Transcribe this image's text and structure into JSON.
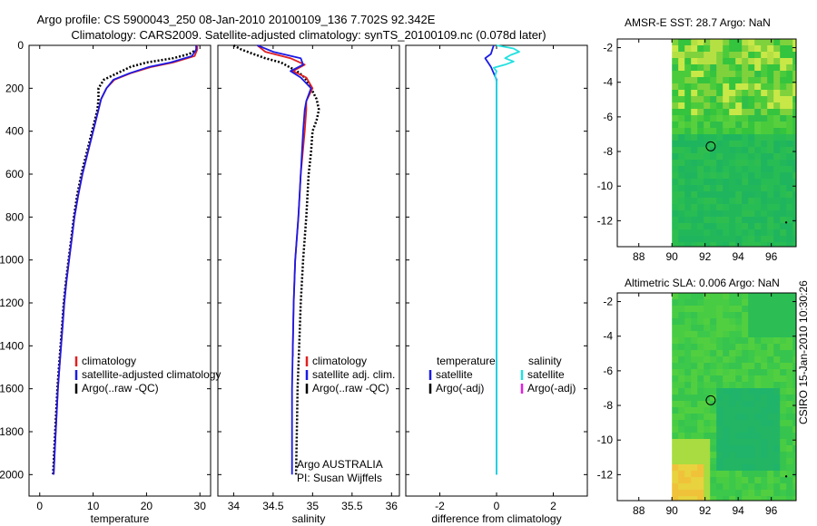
{
  "header": {
    "title_line1": "Argo profile: CS 5900043_250 08-Jan-2010 20100109_136 7.702S 92.342E",
    "title_line2": "Climatology: CARS2009. Satellite-adjusted climatology: synTS_20100109.nc (0.078d later)"
  },
  "credit": "CSIRO 15-Jan-2010 10:30:26",
  "colors": {
    "climatology": "#e02020",
    "satellite": "#1a1ae6",
    "argo": "#000000",
    "sal_satellite": "#22e0e0",
    "sal_argo": "#e020e0"
  },
  "chart_data": [
    {
      "type": "line",
      "name": "temperature-profile",
      "xlabel": "temperature",
      "ylabel": "",
      "xlim": [
        -2,
        32
      ],
      "ylim": [
        2100,
        0
      ],
      "xticks": [
        0,
        10,
        20,
        30
      ],
      "yticks": [
        0,
        200,
        400,
        600,
        800,
        1000,
        1200,
        1400,
        1600,
        1800,
        2000
      ],
      "legend": [
        "climatology",
        "satellite-adjusted climatology",
        "Argo(..raw -QC)"
      ],
      "series": [
        {
          "name": "climatology",
          "depth": [
            0,
            20,
            50,
            80,
            100,
            130,
            160,
            200,
            250,
            300,
            400,
            500,
            600,
            700,
            800,
            900,
            1000,
            1100,
            1200,
            1300,
            1400,
            1500,
            1600,
            1700,
            1800,
            1900,
            2000
          ],
          "values": [
            29.5,
            29.5,
            29.0,
            25.0,
            21.0,
            17.0,
            14.0,
            12.5,
            11.5,
            11.0,
            10.0,
            9.0,
            8.0,
            7.2,
            6.5,
            6.0,
            5.5,
            5.0,
            4.6,
            4.3,
            4.0,
            3.7,
            3.4,
            3.2,
            3.0,
            2.8,
            2.6
          ]
        },
        {
          "name": "satellite",
          "depth": [
            0,
            20,
            50,
            80,
            100,
            130,
            160,
            200,
            250,
            300,
            400,
            500,
            600,
            700,
            800,
            900,
            1000,
            1100,
            1200,
            1300,
            1400,
            1500,
            1600,
            1700,
            1800,
            1900,
            2000
          ],
          "values": [
            29.3,
            29.3,
            28.5,
            24.5,
            20.5,
            16.8,
            13.8,
            12.5,
            11.5,
            11.0,
            10.0,
            9.0,
            8.0,
            7.2,
            6.5,
            6.0,
            5.5,
            5.0,
            4.6,
            4.3,
            4.0,
            3.7,
            3.4,
            3.2,
            3.0,
            2.8,
            2.6
          ]
        },
        {
          "name": "argo",
          "depth": [
            0,
            20,
            40,
            60,
            80,
            100,
            130,
            160,
            200,
            250,
            300,
            400,
            500,
            600,
            700,
            800,
            900,
            1000,
            1100,
            1200,
            1300,
            1400,
            1500,
            1600,
            1700,
            1800,
            1900,
            2000
          ],
          "values": [
            29.4,
            29.4,
            28.0,
            25.0,
            20.0,
            17.0,
            14.5,
            12.0,
            11.0,
            11.0,
            10.8,
            9.8,
            8.8,
            7.8,
            7.0,
            6.4,
            5.9,
            5.4,
            4.9,
            4.5,
            4.2,
            3.9,
            3.6,
            3.3,
            3.1,
            2.9,
            2.7,
            2.5
          ]
        }
      ]
    },
    {
      "type": "line",
      "name": "salinity-profile",
      "xlabel": "salinity",
      "xlim": [
        33.8,
        36.1
      ],
      "ylim": [
        2100,
        0
      ],
      "xticks": [
        34,
        34.5,
        35,
        35.5,
        36
      ],
      "xticklabels": [
        "34",
        "34.5",
        "35",
        "35.5",
        "36"
      ],
      "legend": [
        "climatology",
        "satellite adj. clim.",
        "Argo(..raw -QC)"
      ],
      "annotation": [
        "Argo AUSTRALIA",
        "PI: Susan Wijffels"
      ],
      "series": [
        {
          "name": "climatology",
          "depth": [
            0,
            30,
            60,
            90,
            120,
            150,
            200,
            260,
            300,
            400,
            600,
            800,
            1000,
            1200,
            1400,
            1450
          ],
          "values": [
            34.3,
            34.4,
            34.72,
            34.9,
            34.75,
            34.92,
            35.0,
            34.92,
            34.92,
            34.9,
            34.85,
            34.82,
            34.78,
            34.76,
            34.75,
            34.75
          ]
        },
        {
          "name": "satellite",
          "depth": [
            0,
            30,
            60,
            90,
            120,
            150,
            200,
            260,
            300,
            400,
            600,
            800,
            1000,
            1200,
            1400,
            1600,
            1800,
            2000
          ],
          "values": [
            34.3,
            34.5,
            34.85,
            34.88,
            34.72,
            34.85,
            34.98,
            34.92,
            34.9,
            34.88,
            34.85,
            34.82,
            34.78,
            34.76,
            34.75,
            34.74,
            34.74,
            34.74
          ]
        },
        {
          "name": "argo",
          "depth": [
            0,
            20,
            40,
            60,
            80,
            100,
            120,
            150,
            200,
            250,
            300,
            350,
            400,
            500,
            600,
            800,
            1000,
            1200,
            1400,
            1600,
            1800,
            2000
          ],
          "values": [
            34.0,
            34.1,
            34.25,
            34.4,
            34.6,
            34.7,
            34.8,
            34.9,
            34.98,
            35.05,
            35.08,
            35.05,
            35.0,
            34.98,
            34.95,
            34.92,
            34.88,
            34.85,
            34.83,
            34.81,
            34.8,
            34.79
          ]
        }
      ]
    },
    {
      "type": "line",
      "name": "difference-profile",
      "xlabel": "difference from climatology",
      "xlim": [
        -3.2,
        3.2
      ],
      "ylim": [
        2100,
        0
      ],
      "xticks": [
        -2,
        0,
        2
      ],
      "legend_left_title": "temperature",
      "legend_right_title": "salinity",
      "legend_left": [
        "satellite",
        "Argo(-adj)"
      ],
      "legend_right": [
        "satellite",
        "Argo(-adj)"
      ],
      "series": [
        {
          "name": "temperature-satellite",
          "depth": [
            0,
            20,
            40,
            60,
            80,
            100,
            130,
            160,
            200,
            400,
            800,
            1200,
            1600,
            2000
          ],
          "values": [
            -0.1,
            -0.15,
            -0.2,
            -0.4,
            -0.3,
            -0.2,
            -0.1,
            0.0,
            0.0,
            0.0,
            0.0,
            0.0,
            0.0,
            0.0
          ]
        },
        {
          "name": "salinity-satellite",
          "depth": [
            0,
            15,
            30,
            45,
            60,
            75,
            90,
            105,
            120,
            140,
            170,
            200,
            400,
            800,
            1200,
            1600,
            2000
          ],
          "values": [
            0.0,
            0.6,
            0.8,
            0.5,
            0.3,
            0.6,
            0.3,
            -0.1,
            0.0,
            -0.05,
            0.0,
            0.0,
            0.0,
            0.0,
            0.0,
            0.0,
            0.0
          ]
        }
      ]
    },
    {
      "type": "heatmap",
      "name": "amsr-sst-map",
      "title": "AMSR-E SST: 28.7 Argo: NaN",
      "xlim": [
        86.7,
        97.5
      ],
      "ylim": [
        -13.5,
        -1.5
      ],
      "xticks": [
        88,
        90,
        92,
        94,
        96
      ],
      "yticks": [
        -2,
        -4,
        -6,
        -8,
        -10,
        -12
      ],
      "data_extent_lon": [
        90,
        97.5
      ],
      "marker": {
        "lon": 92.342,
        "lat": -7.702
      }
    },
    {
      "type": "heatmap",
      "name": "altimetric-sla-map",
      "title": "Altimetric SLA: 0.006 Argo: NaN",
      "xlim": [
        86.7,
        97.5
      ],
      "ylim": [
        -13.5,
        -1.5
      ],
      "xticks": [
        88,
        90,
        92,
        94,
        96
      ],
      "yticks": [
        -2,
        -4,
        -6,
        -8,
        -10,
        -12
      ],
      "data_extent_lon": [
        90,
        97.5
      ],
      "marker": {
        "lon": 92.342,
        "lat": -7.702
      }
    }
  ]
}
